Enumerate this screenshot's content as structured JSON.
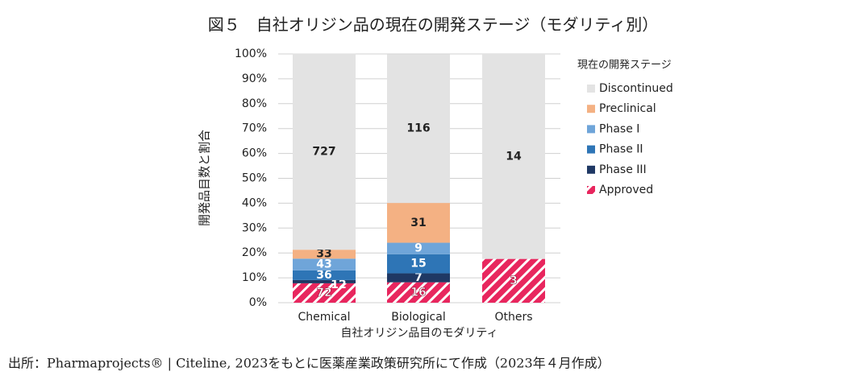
{
  "chart_data": {
    "type": "stacked_bar_100",
    "title": "図５　自社オリジン品の現在の開発ステージ（モダリティ別）",
    "x_label": "自社オリジン品目のモダリティ",
    "y_label": "開発品目数と割合",
    "legend_title": "現在の開発ステージ",
    "source": "出所：Pharmaprojects® | Citeline, 2023をもとに医薬産業政策研究所にて作成（2023年４月作成）",
    "categories": [
      "Chemical",
      "Biological",
      "Others"
    ],
    "series": [
      {
        "name": "Approved",
        "color": "#e8265e",
        "hatch": true,
        "label_color": "#ffffff",
        "values": [
          7.8,
          8.2,
          17.6
        ],
        "counts": [
          72,
          16,
          3
        ]
      },
      {
        "name": "Phase III",
        "color": "#1f3864",
        "label_color": "#ffffff",
        "values": [
          1.3,
          3.6,
          0
        ],
        "counts": [
          12,
          7,
          null
        ]
      },
      {
        "name": "Phase II",
        "color": "#2e75b6",
        "label_color": "#ffffff",
        "values": [
          3.9,
          7.7,
          0
        ],
        "counts": [
          36,
          15,
          null
        ]
      },
      {
        "name": "Phase I",
        "color": "#6fa5d9",
        "label_color": "#ffffff",
        "values": [
          4.7,
          4.6,
          0
        ],
        "counts": [
          43,
          9,
          null
        ]
      },
      {
        "name": "Preclinical",
        "color": "#f4b183",
        "label_color": "#222222",
        "values": [
          3.6,
          16.0,
          0
        ],
        "counts": [
          33,
          31,
          null
        ]
      },
      {
        "name": "Discontinued",
        "color": "#e3e3e3",
        "label_color": "#222222",
        "values": [
          78.8,
          59.8,
          82.4
        ],
        "counts": [
          727,
          116,
          14
        ]
      }
    ],
    "ylim": [
      0,
      100
    ],
    "yticks": [
      {
        "value": 0,
        "label": "0%"
      },
      {
        "value": 10,
        "label": "10%"
      },
      {
        "value": 20,
        "label": "20%"
      },
      {
        "value": 30,
        "label": "30%"
      },
      {
        "value": 40,
        "label": "40%"
      },
      {
        "value": 50,
        "label": "50%"
      },
      {
        "value": 60,
        "label": "60%"
      },
      {
        "value": 70,
        "label": "70%"
      },
      {
        "value": 80,
        "label": "80%"
      },
      {
        "value": 90,
        "label": "90%"
      },
      {
        "value": 100,
        "label": "100%"
      }
    ],
    "grid": true,
    "legend": "right"
  }
}
